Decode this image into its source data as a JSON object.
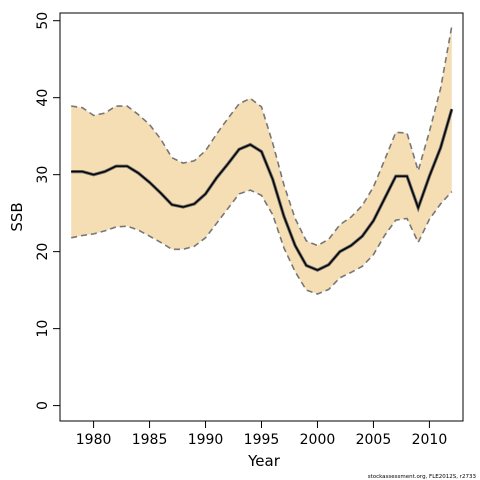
{
  "chart_data": {
    "type": "area",
    "xlabel": "Year",
    "ylabel": "SSB",
    "xlim": [
      1977,
      2013
    ],
    "ylim": [
      -2,
      51
    ],
    "x_ticks": [
      1980,
      1985,
      1990,
      1995,
      2000,
      2005,
      2010
    ],
    "y_ticks": [
      0,
      10,
      20,
      30,
      40,
      50
    ],
    "grid": false,
    "legend": "none",
    "colors": {
      "band": "#f5deb3",
      "line": "#000000",
      "bound": "#777777",
      "axis": "#000000"
    },
    "x": [
      1978,
      1979,
      1980,
      1981,
      1982,
      1983,
      1984,
      1985,
      1986,
      1987,
      1988,
      1989,
      1990,
      1991,
      1992,
      1993,
      1994,
      1995,
      1996,
      1997,
      1998,
      1999,
      2000,
      2001,
      2002,
      2003,
      2004,
      2005,
      2006,
      2007,
      2008,
      2009,
      2010,
      2011,
      2012
    ],
    "series": [
      {
        "role": "estimate",
        "values": [
          30.4,
          30.4,
          30.0,
          30.4,
          31.1,
          31.1,
          30.2,
          29.0,
          27.6,
          26.1,
          25.8,
          26.2,
          27.5,
          29.6,
          31.4,
          33.3,
          33.9,
          33.0,
          29.4,
          24.6,
          20.8,
          18.2,
          17.6,
          18.3,
          20.0,
          20.8,
          22.0,
          24.0,
          26.9,
          29.8,
          29.8,
          25.7,
          29.8,
          33.5,
          38.5
        ]
      },
      {
        "role": "upper",
        "values": [
          38.9,
          38.7,
          37.7,
          38.0,
          38.9,
          38.9,
          37.8,
          36.5,
          34.6,
          32.2,
          31.5,
          31.8,
          33.1,
          35.3,
          37.3,
          39.2,
          39.9,
          38.8,
          34.1,
          28.7,
          24.3,
          21.4,
          20.8,
          21.6,
          23.5,
          24.5,
          26.0,
          28.4,
          31.9,
          35.5,
          35.4,
          30.5,
          35.6,
          41.2,
          49.3
        ]
      },
      {
        "role": "lower",
        "values": [
          21.8,
          22.1,
          22.3,
          22.7,
          23.2,
          23.3,
          22.8,
          22.0,
          21.2,
          20.3,
          20.3,
          20.7,
          21.8,
          23.7,
          25.6,
          27.5,
          28.0,
          27.3,
          24.8,
          20.5,
          17.4,
          15.0,
          14.5,
          15.1,
          16.6,
          17.3,
          18.1,
          19.6,
          22.1,
          24.1,
          24.3,
          21.2,
          24.2,
          26.2,
          27.8
        ]
      }
    ],
    "credit": "stockassessment.org, FLE2012S, r2733"
  }
}
